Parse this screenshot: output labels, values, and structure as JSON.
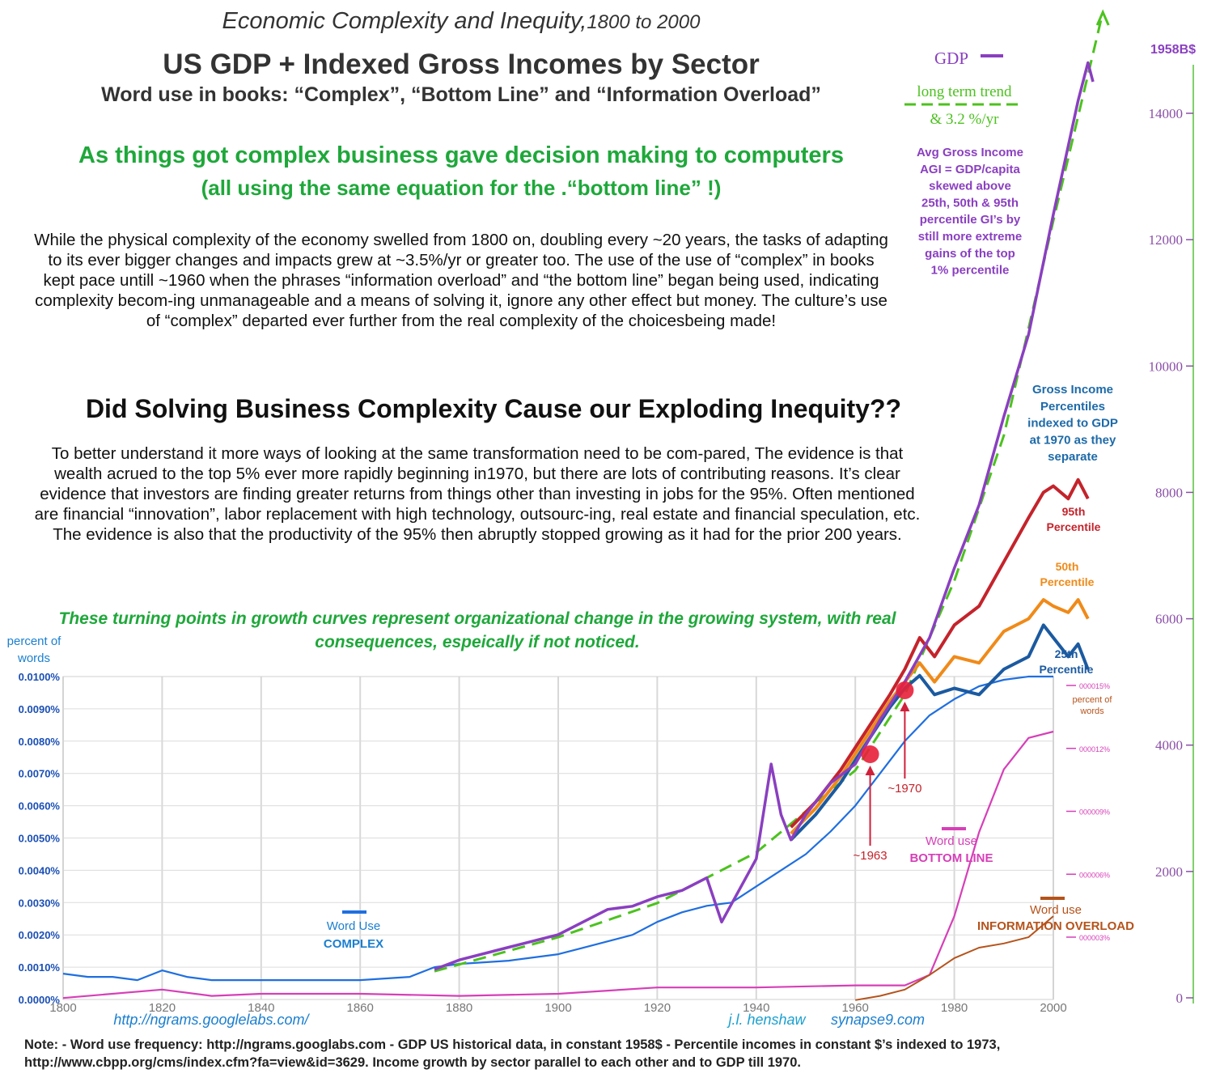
{
  "header": {
    "italic_title": "Economic Complexity and Inequity,",
    "italic_years": "1800 to 2000",
    "main_title": "US GDP + Indexed Gross Incomes by Sector",
    "subtitle": "Word use in books: “Complex”, “Bottom Line” and “Information Overload”",
    "green_line1": "As things got complex business gave decision making to computers",
    "green_line2": "(all using the same equation for the .“bottom line” !)"
  },
  "paragraph1": "While the physical complexity of the economy swelled from 1800 on, doubling every ~20 years, the tasks of adapting to its ever bigger changes and impacts grew at ~3.5%/yr or greater too. The use of the use of “complex” in books kept pace untill ~1960 when the phrases “information overload” and “the bottom line” began being used, indicating complexity becom-ing unmanageable and a means of solving it, ignore any other effect but money.  The culture’s use of “complex” departed ever further from the real complexity of the choicesbeing made!",
  "question": "Did Solving Business Complexity Cause our Exploding Inequity??",
  "paragraph2": "To better understand it more ways of looking at the same transformation need to be com-pared,   The evidence is that wealth acrued to the top 5% ever more rapidly beginning in1970, but there are lots of contributing reasons.  It’s clear evidence that investors are finding greater returns from things other than investing in jobs for the 95%. Often mentioned are financial “innovation”, labor replacement with high technology, outsourc-ing, real estate and financial speculation, etc.   The evidence is also that the productivity of the 95% then abruptly stopped growing as it had for the prior 200 years.",
  "paragraph3": "These turning points in growth curves represent organizational change in the growing system, with real consequences, espeically if not noticed.",
  "footnote": "Note: - Word use frequency: http://ngrams.googlabs.com - GDP US historical data, in constant 1958$ - Percentile incomes in constant $’s indexed to 1973, http://www.cbpp.org/cms/index.cfm?fa=view&id=3629.   Income growth by sector parallel to each other and to GDP till 1970.",
  "colors": {
    "complex": "#1f6fe0",
    "bottom_line": "#d63fb8",
    "info_overload": "#b5531b",
    "gdp": "#8a3fc0",
    "trend": "#4cc21e",
    "p95": "#c4232b",
    "p50": "#f08a18",
    "p25": "#1b5aa0",
    "green_text": "#1ea83a"
  },
  "chart_data": {
    "type": "line",
    "x_range": [
      1800,
      2005
    ],
    "left_axis": {
      "label": "percent of\nwords",
      "ticks": [
        "0.0000%",
        "0.0010%",
        "0.0020%",
        "0.0030%",
        "0.0040%",
        "0.0050%",
        "0.0060%",
        "0.0070%",
        "0.0080%",
        "0.0090%",
        "0.0100%"
      ],
      "ylim": [
        0,
        0.01
      ]
    },
    "right_axis": {
      "label": "1958B$",
      "ticks": [
        "0",
        "2000",
        "4000",
        "6000",
        "8000",
        "10000",
        "12000",
        "14000"
      ],
      "ylim": [
        0,
        15000
      ]
    },
    "inner_axis": {
      "label": "percent of\nwords",
      "ticks": [
        "000003%",
        "000006%",
        "000009%",
        "000012%",
        "000015%"
      ]
    },
    "x_ticks": [
      "1800",
      "1820",
      "1840",
      "1860",
      "1880",
      "1900",
      "1920",
      "1940",
      "1960",
      "1980",
      "2000"
    ],
    "series": [
      {
        "name": "Word Use COMPLEX",
        "axis": "left",
        "x": [
          1800,
          1805,
          1810,
          1815,
          1820,
          1825,
          1830,
          1840,
          1850,
          1860,
          1870,
          1875,
          1880,
          1890,
          1900,
          1905,
          1910,
          1915,
          1920,
          1925,
          1930,
          1935,
          1940,
          1945,
          1950,
          1955,
          1960,
          1965,
          1970,
          1975,
          1980,
          1985,
          1990,
          1995,
          2000
        ],
        "y": [
          0.0008,
          0.0007,
          0.0007,
          0.0006,
          0.0009,
          0.0007,
          0.0006,
          0.0006,
          0.0006,
          0.0006,
          0.0007,
          0.001,
          0.0011,
          0.0012,
          0.0014,
          0.0016,
          0.0018,
          0.002,
          0.0024,
          0.0027,
          0.0029,
          0.003,
          0.0035,
          0.004,
          0.0045,
          0.0052,
          0.006,
          0.007,
          0.008,
          0.0088,
          0.0093,
          0.0097,
          0.0099,
          0.01,
          0.01
        ]
      },
      {
        "name": "Word use BOTTOM LINE",
        "axis": "inner",
        "x": [
          1800,
          1820,
          1830,
          1840,
          1860,
          1880,
          1900,
          1920,
          1940,
          1960,
          1970,
          1975,
          1980,
          1985,
          1990,
          1995,
          2000
        ],
        "y": [
          1e-07,
          5e-07,
          2e-07,
          3e-07,
          3e-07,
          2e-07,
          3e-07,
          6e-07,
          6e-07,
          7e-07,
          7e-07,
          1.2e-06,
          4e-06,
          8e-06,
          1.1e-05,
          1.25e-05,
          1.28e-05
        ]
      },
      {
        "name": "Word use INFORMATION OVERLOAD",
        "axis": "inner",
        "x": [
          1960,
          1965,
          1970,
          1975,
          1980,
          1985,
          1990,
          1995,
          2000
        ],
        "y": [
          0.0,
          2e-07,
          5e-07,
          1.2e-06,
          2e-06,
          2.5e-06,
          2.7e-06,
          3e-06,
          4e-06
        ]
      },
      {
        "name": "GDP",
        "axis": "right",
        "x": [
          1875,
          1880,
          1890,
          1900,
          1905,
          1910,
          1915,
          1920,
          1925,
          1930,
          1933,
          1940,
          1943,
          1945,
          1947,
          1950,
          1955,
          1960,
          1965,
          1970,
          1975,
          1980,
          1985,
          1990,
          1995,
          2000,
          2005,
          2007,
          2008
        ],
        "y": [
          450,
          600,
          800,
          1000,
          1200,
          1400,
          1450,
          1600,
          1700,
          1900,
          1200,
          2200,
          3700,
          2900,
          2500,
          2900,
          3400,
          3700,
          4400,
          5000,
          5700,
          6800,
          7800,
          9200,
          10500,
          12400,
          14200,
          14800,
          14500
        ]
      },
      {
        "name": "long term trend & 3.2 %/yr",
        "axis": "right",
        "x": [
          1875,
          1900,
          1920,
          1940,
          1960,
          1970,
          1980,
          1990,
          2000,
          2010
        ],
        "y": [
          420,
          960,
          1500,
          2300,
          3600,
          4800,
          6600,
          8900,
          12300,
          15600
        ]
      },
      {
        "name": "95th Percentile",
        "axis": "right",
        "x": [
          1947,
          1952,
          1957,
          1962,
          1967,
          1970,
          1973,
          1976,
          1980,
          1985,
          1990,
          1995,
          1998,
          2000,
          2003,
          2005,
          2007
        ],
        "y": [
          2700,
          3100,
          3600,
          4200,
          4800,
          5200,
          5700,
          5400,
          5900,
          6200,
          6900,
          7600,
          8000,
          8100,
          7900,
          8200,
          7900
        ]
      },
      {
        "name": "50th Percentile",
        "axis": "right",
        "x": [
          1947,
          1952,
          1957,
          1962,
          1967,
          1970,
          1973,
          1976,
          1980,
          1985,
          1990,
          1995,
          1998,
          2000,
          2003,
          2005,
          2007
        ],
        "y": [
          2600,
          3000,
          3500,
          4100,
          4700,
          5000,
          5300,
          5000,
          5400,
          5300,
          5800,
          6000,
          6300,
          6200,
          6100,
          6300,
          6000
        ]
      },
      {
        "name": "25th Percentile",
        "axis": "right",
        "x": [
          1947,
          1952,
          1957,
          1962,
          1967,
          1970,
          1973,
          1976,
          1980,
          1985,
          1990,
          1995,
          1998,
          2000,
          2003,
          2005,
          2007
        ],
        "y": [
          2500,
          2900,
          3400,
          4000,
          4600,
          4900,
          5100,
          4800,
          4900,
          4800,
          5200,
          5400,
          5900,
          5700,
          5400,
          5600,
          5200
        ]
      }
    ],
    "annotations": [
      {
        "text": "~1963",
        "x": 1963
      },
      {
        "text": "~1970",
        "x": 1970
      }
    ],
    "legend": {
      "gdp": "GDP",
      "trend1": "long term trend",
      "trend2": "& 3.2  %/yr",
      "agi": [
        "Avg Gross Income",
        "AGI = GDP/capita",
        "skewed above",
        "25th, 50th & 95th",
        "percentile GI’s by",
        "still more extreme",
        "gains of  the top",
        "1% percentile"
      ],
      "gross_income": [
        "Gross Income",
        "Percentiles",
        "indexed to GDP",
        "at 1970 as they",
        "separate"
      ],
      "p95": [
        "95th",
        "Percentile"
      ],
      "p50": [
        "50th",
        "Percentile"
      ],
      "p25": [
        "25th",
        "Percentile"
      ],
      "complex": [
        "Word Use",
        "COMPLEX"
      ],
      "bottom_line": [
        "Word use",
        "BOTTOM LINE"
      ],
      "info_overload": [
        "Word use",
        "INFORMATION OVERLOAD"
      ],
      "inner_units": [
        "percent of",
        "words"
      ]
    },
    "credits": {
      "left": "http://ngrams.googlelabs.com/",
      "right1": "j.l. henshaw",
      "right2": "synapse9.com"
    }
  }
}
